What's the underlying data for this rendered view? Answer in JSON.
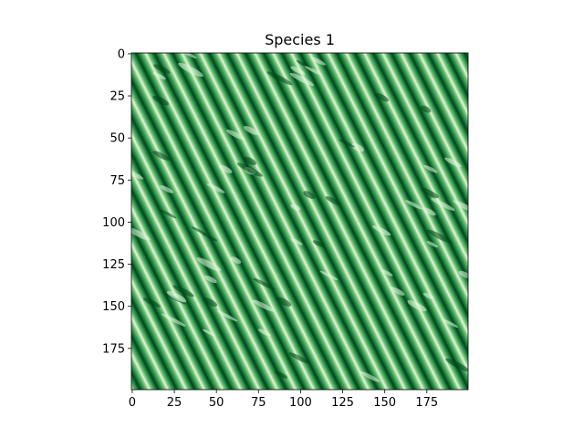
{
  "chart_data": {
    "type": "heatmap",
    "title": "Species 1",
    "xlabel": "",
    "ylabel": "",
    "grid_shape": [
      200,
      200
    ],
    "xlim": [
      0,
      199
    ],
    "ylim": [
      199,
      0
    ],
    "x_ticks": [
      0,
      25,
      50,
      75,
      100,
      125,
      150,
      175
    ],
    "y_ticks": [
      0,
      25,
      50,
      75,
      100,
      125,
      150,
      175
    ],
    "y_axis_inverted": true,
    "colormap": "Greens",
    "colormap_low": "#f7fcf5",
    "colormap_high": "#00441b",
    "pattern": "diagonal labyrinthine stripes (Turing pattern) running from upper-left to lower-right",
    "grid": false
  }
}
